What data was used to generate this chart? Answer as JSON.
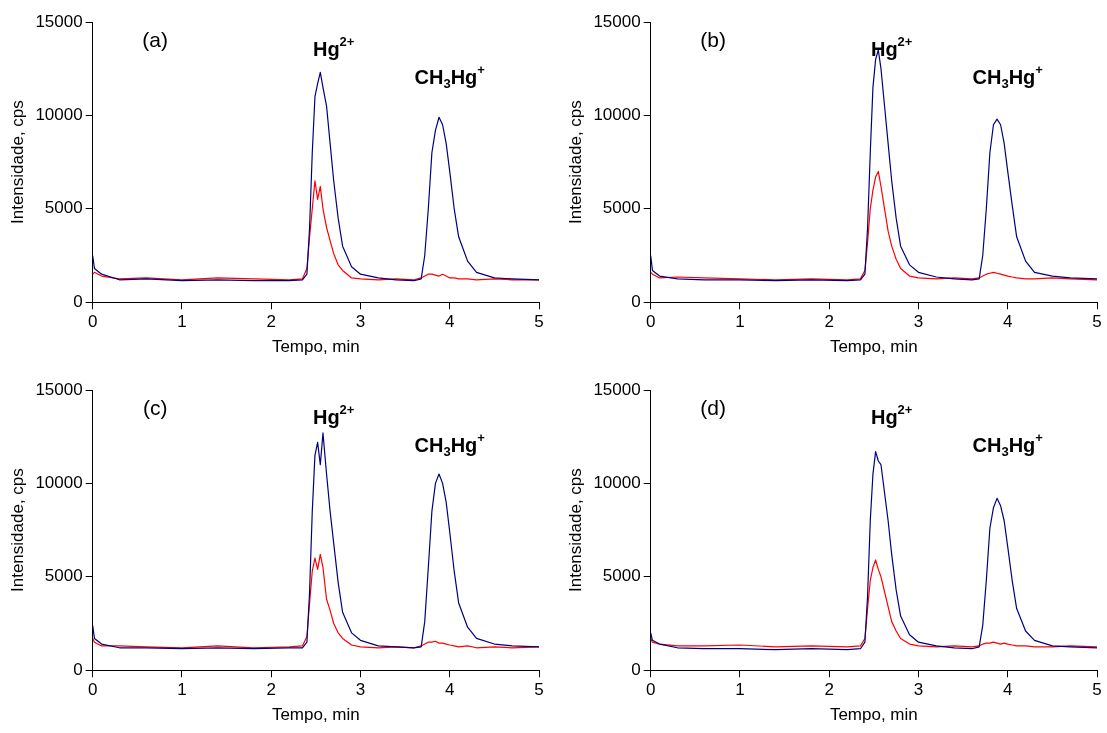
{
  "chart_data": [
    {
      "type": "line",
      "xlabel": "Tempo, min",
      "ylabel": "Intensidade, cps",
      "xlim": [
        0,
        5
      ],
      "xticks": [
        0,
        1,
        2,
        3,
        4,
        5
      ],
      "ylim": [
        0,
        15000
      ],
      "yticks": [
        0,
        5000,
        10000,
        15000
      ],
      "grid": false,
      "legend": false,
      "marker": "none",
      "line_style": "solid",
      "annotations": [
        "(a)",
        "Hg$^{2+}$",
        "CH$_{3}$Hg$^{+}$"
      ],
      "x": [
        0,
        0.02,
        0.1,
        0.3,
        0.6,
        1.0,
        1.4,
        1.8,
        2.2,
        2.35,
        2.4,
        2.43,
        2.46,
        2.49,
        2.52,
        2.55,
        2.58,
        2.62,
        2.66,
        2.7,
        2.75,
        2.8,
        2.9,
        3.0,
        3.2,
        3.4,
        3.6,
        3.68,
        3.72,
        3.76,
        3.8,
        3.84,
        3.88,
        3.92,
        3.96,
        4.0,
        4.05,
        4.1,
        4.2,
        4.3,
        4.5,
        4.7,
        5.0
      ],
      "series": [
        {
          "color": "#000080",
          "values": [
            2500,
            1800,
            1500,
            1200,
            1250,
            1150,
            1200,
            1150,
            1150,
            1200,
            1500,
            4000,
            8000,
            11000,
            11700,
            12300,
            11500,
            10500,
            8500,
            6500,
            4500,
            3000,
            1900,
            1500,
            1300,
            1200,
            1150,
            1250,
            2500,
            5000,
            8000,
            9200,
            9900,
            9500,
            8500,
            7000,
            5000,
            3500,
            2200,
            1600,
            1300,
            1250,
            1200
          ]
        },
        {
          "color": "#ff0000",
          "values": [
            1500,
            1600,
            1400,
            1250,
            1300,
            1200,
            1300,
            1250,
            1200,
            1250,
            1800,
            3500,
            5000,
            6500,
            5500,
            6200,
            5000,
            4000,
            3300,
            2600,
            2000,
            1700,
            1300,
            1250,
            1200,
            1250,
            1200,
            1300,
            1400,
            1500,
            1500,
            1450,
            1400,
            1500,
            1400,
            1300,
            1300,
            1250,
            1250,
            1200,
            1250,
            1200,
            1200
          ]
        }
      ]
    },
    {
      "type": "line",
      "xlabel": "Tempo, min",
      "ylabel": "Intensidade, cps",
      "xlim": [
        0,
        5
      ],
      "xticks": [
        0,
        1,
        2,
        3,
        4,
        5
      ],
      "ylim": [
        0,
        15000
      ],
      "yticks": [
        0,
        5000,
        10000,
        15000
      ],
      "grid": false,
      "legend": false,
      "marker": "none",
      "line_style": "solid",
      "annotations": [
        "(b)",
        "Hg$^{2+}$",
        "CH$_{3}$Hg$^{+}$"
      ],
      "x": [
        0,
        0.02,
        0.1,
        0.3,
        0.6,
        1.0,
        1.4,
        1.8,
        2.2,
        2.35,
        2.4,
        2.43,
        2.46,
        2.49,
        2.52,
        2.55,
        2.58,
        2.62,
        2.66,
        2.7,
        2.75,
        2.8,
        2.9,
        3.0,
        3.2,
        3.4,
        3.6,
        3.68,
        3.72,
        3.76,
        3.8,
        3.84,
        3.88,
        3.92,
        3.96,
        4.0,
        4.05,
        4.1,
        4.2,
        4.3,
        4.5,
        4.7,
        5.0
      ],
      "series": [
        {
          "color": "#000080",
          "values": [
            2500,
            1700,
            1400,
            1250,
            1200,
            1200,
            1150,
            1200,
            1150,
            1200,
            1500,
            4000,
            8000,
            11500,
            13000,
            13500,
            12500,
            10500,
            8500,
            6500,
            4500,
            3000,
            2000,
            1600,
            1350,
            1250,
            1200,
            1250,
            2500,
            5000,
            8000,
            9500,
            9800,
            9500,
            8500,
            7000,
            5200,
            3500,
            2200,
            1600,
            1400,
            1300,
            1250
          ]
        },
        {
          "color": "#ff0000",
          "values": [
            1600,
            1500,
            1300,
            1350,
            1300,
            1250,
            1200,
            1250,
            1200,
            1250,
            1700,
            3200,
            5000,
            6000,
            6700,
            7000,
            6200,
            5000,
            3800,
            3000,
            2300,
            1800,
            1400,
            1300,
            1250,
            1300,
            1250,
            1300,
            1400,
            1500,
            1550,
            1600,
            1550,
            1500,
            1450,
            1400,
            1350,
            1300,
            1250,
            1250,
            1300,
            1250,
            1200
          ]
        }
      ]
    },
    {
      "type": "line",
      "xlabel": "Tempo, min",
      "ylabel": "Intensidade, cps",
      "xlim": [
        0,
        5
      ],
      "xticks": [
        0,
        1,
        2,
        3,
        4,
        5
      ],
      "ylim": [
        0,
        15000
      ],
      "yticks": [
        0,
        5000,
        10000,
        15000
      ],
      "grid": false,
      "legend": false,
      "marker": "none",
      "line_style": "solid",
      "annotations": [
        "(c)",
        "Hg$^{2+}$",
        "CH$_{3}$Hg$^{+}$"
      ],
      "x": [
        0,
        0.02,
        0.1,
        0.3,
        0.6,
        1.0,
        1.4,
        1.8,
        2.2,
        2.35,
        2.4,
        2.43,
        2.46,
        2.49,
        2.52,
        2.55,
        2.58,
        2.62,
        2.66,
        2.7,
        2.75,
        2.8,
        2.9,
        3.0,
        3.2,
        3.4,
        3.6,
        3.68,
        3.72,
        3.76,
        3.8,
        3.84,
        3.88,
        3.92,
        3.96,
        4.0,
        4.05,
        4.1,
        4.2,
        4.3,
        4.5,
        4.7,
        5.0
      ],
      "series": [
        {
          "color": "#000080",
          "values": [
            2400,
            1700,
            1400,
            1200,
            1200,
            1150,
            1200,
            1150,
            1200,
            1200,
            1500,
            4200,
            8500,
            11500,
            12200,
            11000,
            12700,
            10500,
            8500,
            6800,
            4700,
            3100,
            2000,
            1600,
            1300,
            1250,
            1200,
            1250,
            2600,
            5500,
            8500,
            10000,
            10500,
            10000,
            9000,
            7400,
            5300,
            3600,
            2300,
            1700,
            1400,
            1300,
            1250
          ]
        },
        {
          "color": "#ff0000",
          "values": [
            1700,
            1500,
            1300,
            1300,
            1250,
            1200,
            1300,
            1200,
            1250,
            1300,
            1800,
            3600,
            5300,
            6000,
            5400,
            6200,
            5500,
            3800,
            3200,
            2500,
            2000,
            1700,
            1350,
            1250,
            1200,
            1250,
            1200,
            1300,
            1400,
            1500,
            1500,
            1550,
            1450,
            1450,
            1400,
            1350,
            1300,
            1250,
            1300,
            1200,
            1250,
            1200,
            1250
          ]
        }
      ]
    },
    {
      "type": "line",
      "xlabel": "Tempo, min",
      "ylabel": "Intensidade, cps",
      "xlim": [
        0,
        5
      ],
      "xticks": [
        0,
        1,
        2,
        3,
        4,
        5
      ],
      "ylim": [
        0,
        15000
      ],
      "yticks": [
        0,
        5000,
        10000,
        15000
      ],
      "grid": false,
      "legend": false,
      "marker": "none",
      "line_style": "solid",
      "annotations": [
        "(d)",
        "Hg$^{2+}$",
        "CH$_{3}$Hg$^{+}$"
      ],
      "x": [
        0,
        0.02,
        0.1,
        0.3,
        0.6,
        1.0,
        1.4,
        1.8,
        2.2,
        2.35,
        2.4,
        2.43,
        2.46,
        2.49,
        2.52,
        2.55,
        2.58,
        2.62,
        2.66,
        2.7,
        2.75,
        2.8,
        2.9,
        3.0,
        3.2,
        3.4,
        3.6,
        3.68,
        3.72,
        3.76,
        3.8,
        3.84,
        3.88,
        3.92,
        3.96,
        4.0,
        4.05,
        4.1,
        4.2,
        4.3,
        4.5,
        4.7,
        5.0
      ],
      "series": [
        {
          "color": "#000080",
          "values": [
            2000,
            1600,
            1400,
            1200,
            1150,
            1150,
            1100,
            1150,
            1100,
            1150,
            1500,
            4000,
            8000,
            10500,
            11700,
            11200,
            11000,
            9500,
            8000,
            6200,
            4300,
            2900,
            1900,
            1500,
            1300,
            1200,
            1150,
            1250,
            2400,
            4800,
            7600,
            8700,
            9200,
            8800,
            8000,
            6600,
            4800,
            3300,
            2100,
            1600,
            1300,
            1250,
            1200
          ]
        },
        {
          "color": "#ff0000",
          "values": [
            1700,
            1500,
            1400,
            1300,
            1300,
            1350,
            1250,
            1300,
            1250,
            1300,
            1700,
            3300,
            4800,
            5500,
            5900,
            5400,
            5000,
            4200,
            3400,
            2600,
            2100,
            1700,
            1400,
            1300,
            1250,
            1300,
            1250,
            1300,
            1400,
            1450,
            1450,
            1500,
            1450,
            1400,
            1450,
            1400,
            1350,
            1300,
            1300,
            1250,
            1250,
            1300,
            1250
          ]
        }
      ]
    }
  ]
}
